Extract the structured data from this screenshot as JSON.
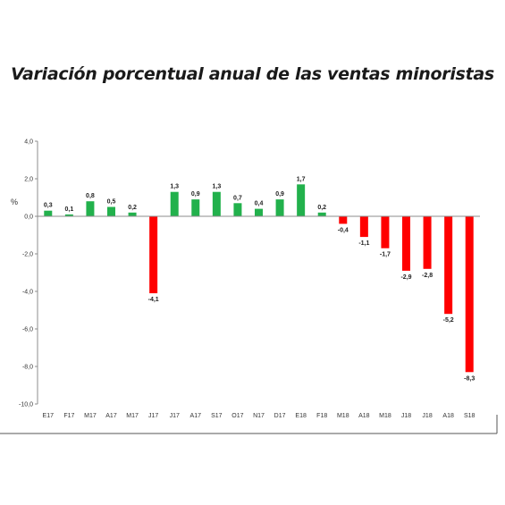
{
  "chart_data": {
    "type": "bar",
    "title": "Variación porcentual anual de las ventas minoristas",
    "ylabel": "%",
    "xlabel": "",
    "ylim": [
      -10,
      4
    ],
    "yticks": [
      "4,0",
      "2,0",
      "0,0",
      "-2,0",
      "-4,0",
      "-6,0",
      "-8,0",
      "-10,0"
    ],
    "ytick_values": [
      4,
      2,
      0,
      -2,
      -4,
      -6,
      -8,
      -10
    ],
    "grid": false,
    "categories": [
      "E17",
      "F17",
      "M17",
      "A17",
      "M17",
      "J17",
      "J17",
      "A17",
      "S17",
      "O17",
      "N17",
      "D17",
      "E18",
      "F18",
      "M18",
      "A18",
      "M18",
      "J18",
      "J18",
      "A18",
      "S18"
    ],
    "values": [
      0.3,
      0.1,
      0.8,
      0.5,
      0.2,
      -4.1,
      1.3,
      0.9,
      1.3,
      0.7,
      0.4,
      0.9,
      1.7,
      0.2,
      -0.4,
      -1.1,
      -1.7,
      -2.9,
      -2.8,
      -5.2,
      -8.3
    ],
    "data_labels": [
      "0,3",
      "0,1",
      "0,8",
      "0,5",
      "0,2",
      "-4,1",
      "1,3",
      "0,9",
      "1,3",
      "0,7",
      "0,4",
      "0,9",
      "1,7",
      "0,2",
      "-0,4",
      "-1,1",
      "-1,7",
      "-2,9",
      "-2,8",
      "-5,2",
      "-8,3"
    ],
    "colors": {
      "positive": "#22b14c",
      "negative": "#ff0000",
      "axis": "#8c8c8c"
    }
  }
}
